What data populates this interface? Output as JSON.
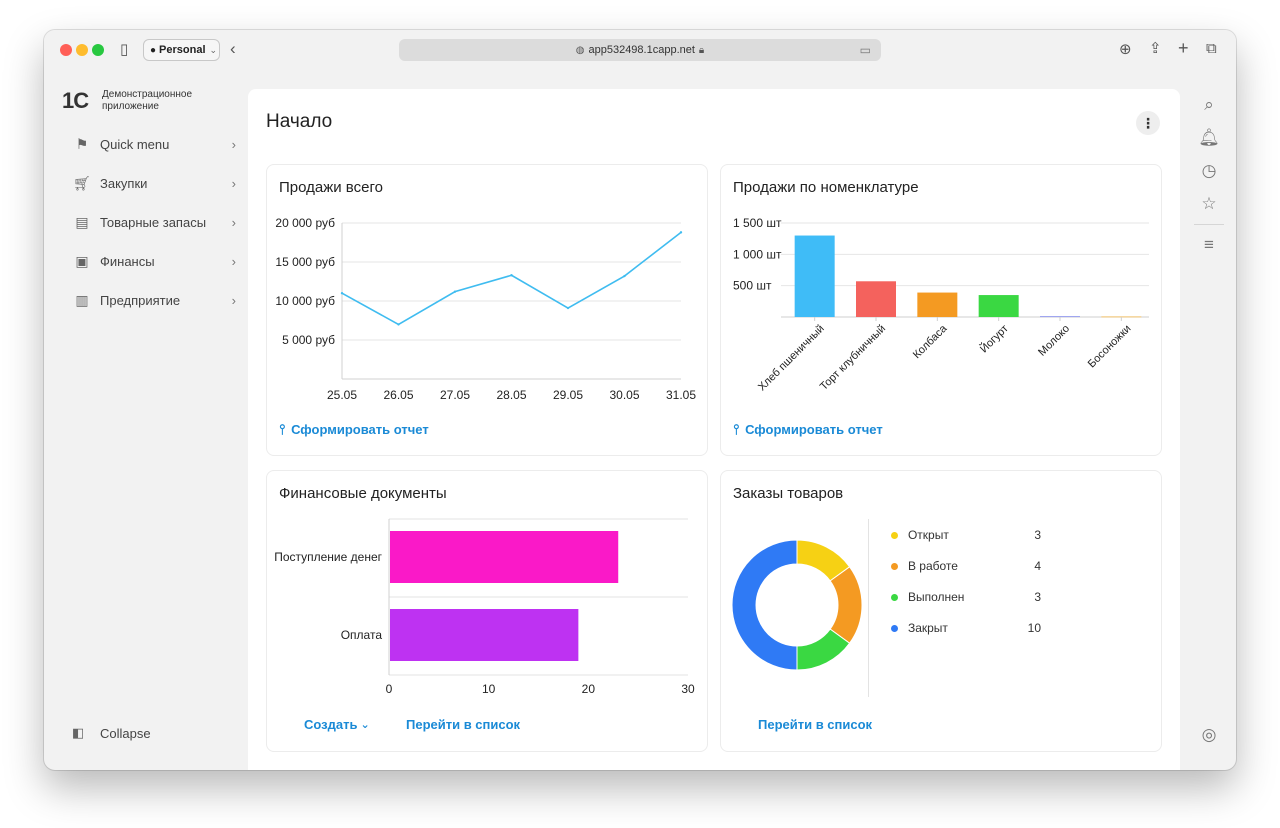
{
  "browser": {
    "profile_label": "Personal",
    "url": "app532498.1capp.net",
    "traffic_colors": [
      "#ff5f57",
      "#febc2e",
      "#28c840"
    ]
  },
  "app": {
    "logo_mark": "1С",
    "name": "Демонстрационное приложение"
  },
  "sidebar": {
    "items": [
      {
        "label": "Quick menu",
        "icon": "flag-icon"
      },
      {
        "label": "Закупки",
        "icon": "cart-icon"
      },
      {
        "label": "Товарные запасы",
        "icon": "warehouse-cart-icon"
      },
      {
        "label": "Финансы",
        "icon": "wallet-icon"
      },
      {
        "label": "Предприятие",
        "icon": "factory-icon"
      }
    ],
    "collapse_label": "Collapse"
  },
  "page": {
    "title": "Начало"
  },
  "cards": {
    "sales_total": {
      "title": "Продажи всего",
      "link": "Сформировать отчет"
    },
    "sales_by_item": {
      "title": "Продажи по номенклатуре",
      "link": "Сформировать отчет"
    },
    "finance_docs": {
      "title": "Финансовые документы",
      "create_label": "Создать",
      "list_link": "Перейти в список"
    },
    "orders": {
      "title": "Заказы товаров",
      "list_link": "Перейти в список"
    }
  },
  "chart_data": [
    {
      "type": "line",
      "title": "Продажи всего",
      "categories": [
        "25.05",
        "26.05",
        "27.05",
        "28.05",
        "29.05",
        "30.05",
        "31.05"
      ],
      "values": [
        11000,
        7000,
        11200,
        13300,
        9100,
        13200,
        18800
      ],
      "y_ticks": [
        "20 000 руб",
        "15 000 руб",
        "10 000 руб",
        "5 000 руб"
      ],
      "ylim": [
        0,
        20000
      ],
      "color": "#3fbcf0",
      "grid": true
    },
    {
      "type": "bar",
      "title": "Продажи по номенклатуре",
      "categories": [
        "Хлеб пшеничный",
        "Торт клубничный",
        "Колбаса",
        "Йогурт",
        "Молоко",
        "Босоножки"
      ],
      "values": [
        1300,
        570,
        390,
        350,
        15,
        10
      ],
      "colors": [
        "#3fbcf7",
        "#f4625d",
        "#f49a22",
        "#3ad842",
        "#9aa0f0",
        "#f0c06a"
      ],
      "y_ticks": [
        "1 500 шт",
        "1 000 шт",
        "500 шт"
      ],
      "ylim": [
        0,
        1500
      ],
      "grid": true
    },
    {
      "type": "bar",
      "orientation": "horizontal",
      "title": "Финансовые документы",
      "categories": [
        "Поступление денег",
        "Оплата"
      ],
      "values": [
        23,
        19
      ],
      "colors": [
        "#fa19c8",
        "#be32f2"
      ],
      "x_ticks": [
        "0",
        "10",
        "20",
        "30"
      ],
      "xlim": [
        0,
        30
      ],
      "grid": true
    },
    {
      "type": "pie",
      "style": "donut",
      "title": "Заказы товаров",
      "categories": [
        "Открыт",
        "В работе",
        "Выполнен",
        "Закрыт"
      ],
      "values": [
        3,
        4,
        3,
        10
      ],
      "colors": [
        "#f6d114",
        "#f49a22",
        "#3ad842",
        "#2f7af5"
      ],
      "legend": "right"
    }
  ]
}
